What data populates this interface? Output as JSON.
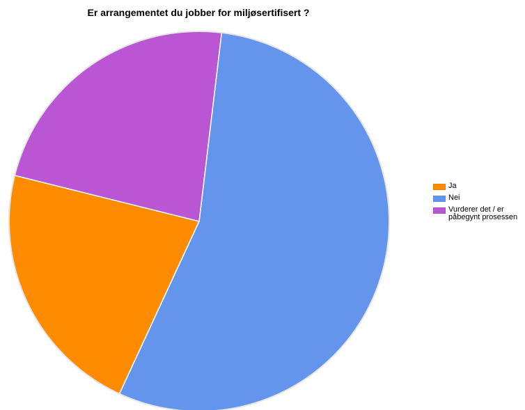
{
  "chart_data": {
    "type": "pie",
    "title": "Er arrangementet du jobber for miljøsertifisert ?",
    "slices": [
      {
        "label": "Ja",
        "value": 22,
        "color": "#FF8C00"
      },
      {
        "label": "Nei",
        "value": 55,
        "color": "#6495ED"
      },
      {
        "label": "Vurderer det / er påbegynt prosessen",
        "value": 23,
        "color": "#BA55D3"
      }
    ],
    "start_angle_deg": 166,
    "direction": "counterclockwise",
    "legend_position": "right"
  }
}
